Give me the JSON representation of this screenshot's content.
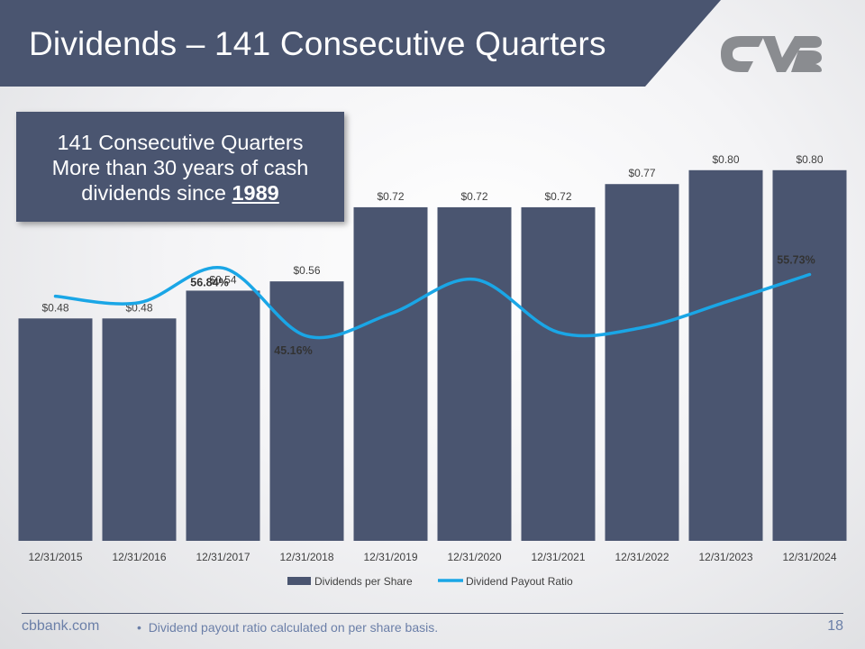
{
  "slide": {
    "title": "Dividends – 141 Consecutive Quarters",
    "logo_alt": "CVB"
  },
  "callout": {
    "line1": "141 Consecutive Quarters",
    "line2": "More than 30 years of cash",
    "line3_prefix": "dividends since ",
    "line3_year": "1989"
  },
  "footer": {
    "website": "cbbank.com",
    "bullet": "•",
    "note": "Dividend payout ratio calculated on per share basis.",
    "page_number": "18"
  },
  "colors": {
    "bar": "#4a5570",
    "line": "#1aa6e6",
    "banner": "#4a5570"
  },
  "chart_data": {
    "type": "bar",
    "categories": [
      "12/31/2015",
      "12/31/2016",
      "12/31/2017",
      "12/31/2018",
      "12/31/2019",
      "12/31/2020",
      "12/31/2021",
      "12/31/2022",
      "12/31/2023",
      "12/31/2024"
    ],
    "ylim": [
      0,
      1.0
    ],
    "series": [
      {
        "name": "Dividends per Share",
        "type": "bar",
        "values": [
          0.48,
          0.48,
          0.54,
          0.56,
          0.72,
          0.72,
          0.72,
          0.77,
          0.8,
          0.8
        ],
        "labels": [
          "$0.48",
          "$0.48",
          "$0.54",
          "$0.56",
          "$0.72",
          "$0.72",
          "$0.72",
          "$0.77",
          "$0.80",
          "$0.80"
        ]
      },
      {
        "name": "Dividend Payout Ratio",
        "type": "line",
        "axis": "secondary",
        "ylim": [
          10,
          75
        ],
        "values": [
          52.0,
          50.9,
          56.84,
          45.16,
          49.0,
          54.9,
          45.8,
          46.6,
          51.0,
          55.73
        ],
        "labels": [
          "",
          "",
          "56.84%",
          "45.16%",
          "",
          "",
          "",
          "",
          "",
          "55.73%"
        ]
      }
    ],
    "legend": [
      "Dividends per Share",
      "Dividend Payout Ratio"
    ],
    "legend_position": "bottom"
  }
}
